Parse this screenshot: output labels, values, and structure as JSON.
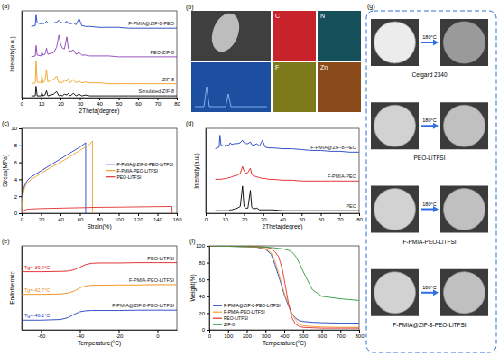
{
  "chart_data": [
    {
      "type": "line",
      "title": "(a)",
      "x_label": "2Theta(degree)",
      "y_label": "Intensity(a.u.)",
      "xlim": [
        0,
        80
      ],
      "xticks": [
        0,
        10,
        20,
        30,
        40,
        50,
        60,
        70,
        80
      ],
      "ylim": [
        0,
        100
      ],
      "tick_labels": "x",
      "x": [
        5,
        7,
        7.4,
        8,
        10,
        10.4,
        11,
        12,
        12.8,
        13.5,
        15,
        16.5,
        18,
        19.2,
        20,
        21,
        22,
        23.3,
        24,
        25,
        26.7,
        28,
        29.6,
        31,
        33,
        35,
        40,
        45,
        50,
        55,
        60,
        65,
        70,
        75,
        80
      ],
      "series": [
        {
          "name": "F-PMIA@ZIF-8-PEO",
          "color": "#1f3fbf",
          "values": [
            82,
            83,
            95,
            86,
            85,
            87,
            85,
            86,
            88,
            86,
            86,
            86,
            87,
            89,
            87,
            86,
            86,
            88,
            86,
            85,
            86,
            84,
            91,
            83,
            82,
            82,
            81,
            81,
            81,
            80,
            80,
            80,
            80,
            80,
            80
          ]
        },
        {
          "name": "PEO-ZIF-8",
          "color": "#8a3fb5",
          "values": [
            47,
            48,
            60,
            49,
            48,
            53,
            49,
            50,
            57,
            50,
            51,
            52,
            58,
            72,
            62,
            57,
            56,
            70,
            57,
            53,
            55,
            50,
            52,
            49,
            49,
            48,
            48,
            48,
            47,
            47,
            47,
            47,
            47,
            47,
            47
          ]
        },
        {
          "name": "ZIF-8",
          "color": "#f0a020",
          "values": [
            16,
            17,
            42,
            18,
            17,
            26,
            17,
            20,
            32,
            18,
            20,
            21,
            25,
            17,
            18,
            17,
            20,
            19,
            22,
            17,
            21,
            17,
            19,
            17,
            18,
            17,
            17,
            16,
            16,
            16,
            16,
            16,
            16,
            16,
            16
          ]
        },
        {
          "name": "Simulated-ZIF-8",
          "color": "#000000",
          "values": [
            2,
            2,
            13,
            2,
            2,
            6,
            2,
            3,
            8,
            2,
            3,
            4,
            7,
            2,
            3,
            2,
            4,
            3,
            5,
            2,
            5,
            2,
            4,
            2,
            3,
            2,
            2,
            2,
            2,
            2,
            2,
            2,
            2,
            2,
            2
          ]
        }
      ]
    },
    {
      "type": "image",
      "title": "(b)",
      "labels": [
        "C",
        "N",
        "F",
        "Zn"
      ]
    },
    {
      "type": "line",
      "title": "(c)",
      "x_label": "Strain(%)",
      "y_label": "Stress(MPa)",
      "xlim": [
        0,
        160
      ],
      "xticks": [
        0,
        20,
        40,
        60,
        80,
        100,
        120,
        140,
        160
      ],
      "ylim": [
        0,
        10
      ],
      "yticks": [
        0,
        2,
        4,
        6,
        8,
        10
      ],
      "legend": "right",
      "series": [
        {
          "name": "F-PMIA@ZIF-8-PEO-LiTFSI",
          "color": "#2040c0",
          "x": [
            0,
            1,
            3,
            6,
            10,
            20,
            30,
            40,
            50,
            60,
            66,
            66
          ],
          "values": [
            0,
            2.2,
            3.3,
            3.9,
            4.3,
            5.0,
            5.7,
            6.4,
            7.1,
            7.8,
            8.3,
            0
          ]
        },
        {
          "name": "F-PMIA-PEO-LiTFSI",
          "color": "#f0a030",
          "x": [
            0,
            1,
            3,
            6,
            10,
            20,
            30,
            40,
            50,
            60,
            70,
            73,
            73
          ],
          "values": [
            0,
            2.0,
            3.0,
            3.6,
            4.0,
            4.7,
            5.4,
            6.0,
            6.7,
            7.4,
            8.1,
            8.5,
            0
          ]
        },
        {
          "name": "PEO-LiTFSI",
          "color": "#e03030",
          "x": [
            0,
            2,
            5,
            10,
            20,
            40,
            60,
            80,
            100,
            120,
            140,
            155,
            155
          ],
          "values": [
            0,
            0.3,
            0.45,
            0.5,
            0.55,
            0.6,
            0.65,
            0.7,
            0.72,
            0.75,
            0.78,
            0.8,
            0
          ]
        }
      ]
    },
    {
      "type": "line",
      "title": "(d)",
      "x_label": "2Theta(degree)",
      "y_label": "Intensity(a.u.)",
      "xlim": [
        0,
        80
      ],
      "xticks": [
        0,
        10,
        20,
        30,
        40,
        50,
        60,
        70,
        80
      ],
      "ylim": [
        0,
        100
      ],
      "tick_labels": "x",
      "x": [
        5,
        7,
        7.4,
        8,
        10,
        10.4,
        11,
        12,
        12.8,
        13.5,
        15,
        16.5,
        18,
        19.2,
        20,
        21,
        22,
        23.3,
        24,
        25,
        26.7,
        28,
        29.6,
        31,
        33,
        35,
        40,
        45,
        50,
        55,
        60,
        65,
        70,
        75,
        80
      ],
      "series": [
        {
          "name": "F-PMIA@ZIF-8-PEO",
          "color": "#1f3fbf",
          "values": [
            76,
            78,
            92,
            80,
            79,
            81,
            80,
            80,
            83,
            81,
            82,
            82,
            83,
            86,
            83,
            82,
            82,
            84,
            81,
            80,
            82,
            79,
            86,
            78,
            77,
            77,
            76,
            76,
            75,
            74,
            74,
            73,
            73,
            72,
            72
          ]
        },
        {
          "name": "F-PMIA-PEO",
          "color": "#e02020",
          "values": [
            40,
            40,
            40,
            40,
            41,
            41,
            41,
            42,
            42,
            43,
            44,
            45,
            47,
            55,
            50,
            47,
            48,
            53,
            46,
            44,
            43,
            42,
            41,
            41,
            40,
            40,
            39,
            39,
            38,
            38,
            38,
            38,
            38,
            38,
            38
          ]
        },
        {
          "name": "PEO",
          "color": "#000000",
          "values": [
            3,
            3,
            3,
            3,
            3,
            3,
            3,
            3,
            4,
            4,
            5,
            6,
            8,
            32,
            8,
            6,
            6,
            27,
            7,
            5,
            6,
            4,
            4,
            4,
            4,
            4,
            3,
            3,
            3,
            3,
            3,
            3,
            3,
            3,
            3
          ]
        }
      ]
    },
    {
      "type": "line",
      "title": "(e)",
      "x_label": "Temperature(°C)",
      "y_label": "Endothermic",
      "xlim": [
        -70,
        10
      ],
      "xticks": [
        -60,
        -40,
        -20,
        0
      ],
      "ylim": [
        0,
        13
      ],
      "tick_labels": "x",
      "x": [
        -70,
        -60,
        -50,
        -46,
        -43,
        -40,
        -37,
        -34,
        -30,
        -20,
        -10,
        0,
        10
      ],
      "series": [
        {
          "name": "PEO-LiTFSI",
          "color": "#e02020",
          "annotation": "Tg=-39.4°C",
          "values": [
            9.0,
            9.0,
            9.05,
            9.1,
            9.3,
            9.7,
            10.1,
            10.3,
            10.35,
            10.35,
            10.4,
            10.4,
            10.4
          ]
        },
        {
          "name": "F-PMIA-PEO-LiTFSI",
          "color": "#f08a10",
          "annotation": "Tg=-42.7°C",
          "values": [
            5.5,
            5.5,
            5.55,
            5.7,
            6.0,
            6.5,
            6.8,
            6.9,
            6.9,
            6.95,
            6.95,
            7,
            7
          ]
        },
        {
          "name": "F-PMIA@ZIF-8-PEO-LiTFSI",
          "color": "#1f3fbf",
          "annotation": "Tg=-46.1°C",
          "values": [
            1.5,
            1.5,
            1.6,
            1.9,
            2.4,
            2.8,
            2.95,
            3,
            3,
            3,
            3.05,
            3.05,
            3.05
          ]
        }
      ]
    },
    {
      "type": "line",
      "title": "(f)",
      "x_label": "Temperature(°C)",
      "y_label": "Weight(%)",
      "xlim": [
        0,
        800
      ],
      "xticks": [
        0,
        100,
        200,
        300,
        400,
        500,
        600,
        700,
        800
      ],
      "ylim": [
        0,
        100
      ],
      "yticks": [
        0,
        20,
        40,
        60,
        80,
        100
      ],
      "legend": "lower left",
      "x": [
        0,
        100,
        200,
        250,
        300,
        330,
        350,
        370,
        390,
        400,
        420,
        440,
        460,
        480,
        500,
        550,
        600,
        700,
        800
      ],
      "series": [
        {
          "name": "F-PMIA@ZIF-8-PEO-LiTFSI",
          "color": "#2040c0",
          "values": [
            100,
            99.5,
            99,
            98.5,
            96,
            90,
            78,
            64,
            50,
            42,
            30,
            20,
            14,
            11,
            10,
            9,
            8.5,
            8,
            8
          ]
        },
        {
          "name": "F-PMIA-PEO-LiTFSI",
          "color": "#f0a030",
          "values": [
            100,
            99.5,
            99,
            98.5,
            97,
            92,
            82,
            68,
            52,
            44,
            32,
            20,
            12,
            7,
            5,
            4,
            3.5,
            3,
            3
          ]
        },
        {
          "name": "PEO-LiTFSI",
          "color": "#e03030",
          "values": [
            100,
            99.8,
            99.5,
            99.2,
            98.5,
            97,
            93,
            87,
            72,
            60,
            35,
            15,
            7,
            4,
            3,
            2.5,
            2,
            2,
            2
          ]
        },
        {
          "name": "ZIF-8",
          "color": "#2a9a3a",
          "values": [
            100,
            99.5,
            99,
            99,
            98.5,
            98,
            97.5,
            97,
            96.5,
            96,
            95,
            93,
            88,
            80,
            70,
            48,
            40,
            37,
            35
          ]
        }
      ]
    },
    {
      "type": "image",
      "title": "(g)",
      "samples": [
        "Celgard 2340",
        "PEO-LiTFSI",
        "F-PMIA-PEO-LiTFSI",
        "F-PMIA@ZIF-8-PEO-LiTFSI"
      ],
      "condition": "180°C"
    }
  ]
}
